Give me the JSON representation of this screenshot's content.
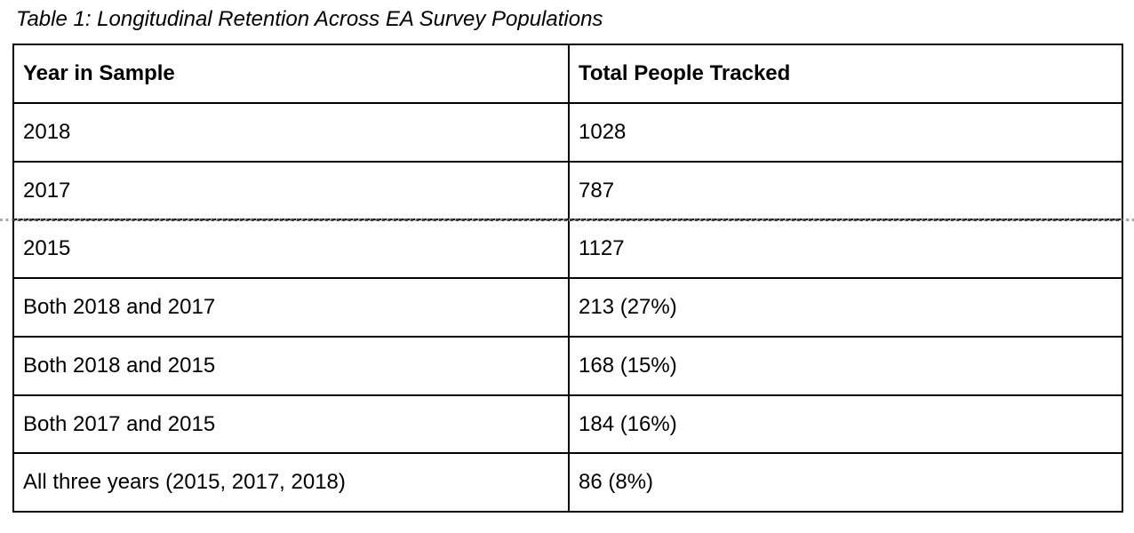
{
  "caption": "Table 1: Longitudinal Retention Across EA Survey Populations",
  "table": {
    "headers": [
      "Year in Sample",
      "Total People Tracked"
    ],
    "rows": [
      {
        "label": "2018",
        "value": "1028"
      },
      {
        "label": "2017",
        "value": "787"
      },
      {
        "label": "2015",
        "value": "1127"
      },
      {
        "label": "Both 2018 and 2017",
        "value": "213 (27%)"
      },
      {
        "label": "Both 2018 and 2015",
        "value": "168 (15%)"
      },
      {
        "label": "Both 2017 and 2015",
        "value": "184 (16%)"
      },
      {
        "label": "All three years (2015, 2017, 2018)",
        "value": "86 (8%)"
      }
    ]
  },
  "page_break": {
    "description": "dotted page-break line crossing full page width between the 2017 and 2015 rows"
  },
  "colors": {
    "border": "#000000",
    "text": "#000000",
    "background": "#ffffff",
    "pagebreak_outside": "#ababab",
    "pagebreak_inside": "#3d3d3d"
  }
}
